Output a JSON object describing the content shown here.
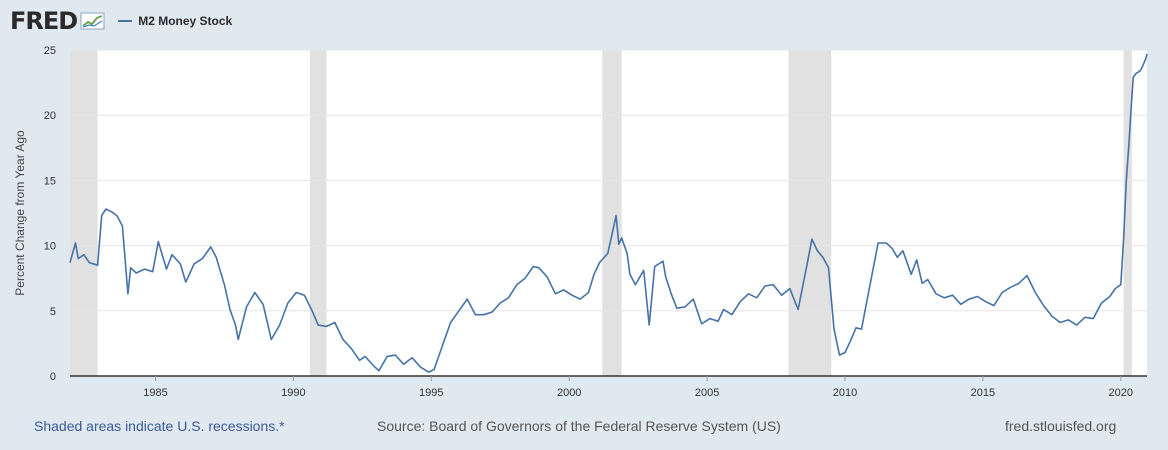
{
  "header": {
    "logo_text": "FRED",
    "logo_icon": "chart-line-icon"
  },
  "chart_data": {
    "type": "line",
    "title": "",
    "xlabel": "",
    "ylabel": "Percent Change from Year Ago",
    "xlim": [
      1981.9,
      2020.95
    ],
    "ylim": [
      0,
      25
    ],
    "x_ticks": [
      "1985",
      "1990",
      "1995",
      "2000",
      "2005",
      "2010",
      "2015",
      "2020"
    ],
    "y_ticks": [
      "0",
      "5",
      "10",
      "15",
      "20",
      "25"
    ],
    "grid": true,
    "legend_position": "top-left",
    "recessions": [
      [
        1981.9,
        1982.9
      ],
      [
        1990.6,
        1991.2
      ],
      [
        2001.2,
        2001.9
      ],
      [
        2007.95,
        2009.5
      ],
      [
        2020.1,
        2020.4
      ]
    ],
    "series": [
      {
        "name": "M2 Money Stock",
        "color": "#4572a7",
        "x": [
          1981.9,
          1982.1,
          1982.2,
          1982.4,
          1982.6,
          1982.9,
          1983.05,
          1983.2,
          1983.4,
          1983.6,
          1983.8,
          1984.0,
          1984.1,
          1984.3,
          1984.6,
          1984.9,
          1985.1,
          1985.4,
          1985.6,
          1985.9,
          1986.1,
          1986.4,
          1986.7,
          1987.0,
          1987.2,
          1987.5,
          1987.7,
          1987.9,
          1988.0,
          1988.3,
          1988.6,
          1988.9,
          1989.2,
          1989.5,
          1989.8,
          1990.1,
          1990.4,
          1990.7,
          1990.9,
          1991.2,
          1991.5,
          1991.8,
          1992.1,
          1992.4,
          1992.6,
          1992.9,
          1993.1,
          1993.4,
          1993.7,
          1994.0,
          1994.3,
          1994.6,
          1994.9,
          1995.1,
          1995.4,
          1995.7,
          1996.0,
          1996.3,
          1996.6,
          1996.9,
          1997.2,
          1997.5,
          1997.8,
          1998.1,
          1998.4,
          1998.7,
          1998.9,
          1999.2,
          1999.5,
          1999.8,
          2000.1,
          2000.4,
          2000.7,
          2000.9,
          2001.1,
          2001.4,
          2001.7,
          2001.8,
          2001.9,
          2002.1,
          2002.2,
          2002.4,
          2002.7,
          2002.9,
          2003.1,
          2003.4,
          2003.5,
          2003.7,
          2003.9,
          2004.2,
          2004.5,
          2004.8,
          2005.1,
          2005.4,
          2005.6,
          2005.9,
          2006.2,
          2006.5,
          2006.8,
          2007.1,
          2007.4,
          2007.7,
          2008.0,
          2008.3,
          2008.6,
          2008.8,
          2009.0,
          2009.2,
          2009.4,
          2009.6,
          2009.8,
          2010.0,
          2010.2,
          2010.4,
          2010.6,
          2010.9,
          2011.2,
          2011.5,
          2011.7,
          2011.9,
          2012.1,
          2012.4,
          2012.6,
          2012.8,
          2013.0,
          2013.3,
          2013.6,
          2013.9,
          2014.2,
          2014.5,
          2014.8,
          2015.1,
          2015.4,
          2015.7,
          2016.0,
          2016.3,
          2016.6,
          2016.9,
          2017.2,
          2017.5,
          2017.8,
          2018.1,
          2018.4,
          2018.7,
          2019.0,
          2019.3,
          2019.6,
          2019.8,
          2020.0,
          2020.1,
          2020.2,
          2020.3,
          2020.35,
          2020.45,
          2020.55,
          2020.7,
          2020.8,
          2020.9,
          2020.95
        ],
        "values": [
          8.7,
          10.2,
          9.0,
          9.3,
          8.7,
          8.5,
          12.3,
          12.8,
          12.6,
          12.3,
          11.5,
          6.3,
          8.3,
          7.9,
          8.2,
          8.0,
          10.3,
          8.2,
          9.3,
          8.6,
          7.2,
          8.6,
          9.0,
          9.9,
          9.1,
          7.0,
          5.1,
          3.9,
          2.8,
          5.3,
          6.4,
          5.5,
          2.8,
          3.9,
          5.6,
          6.4,
          6.2,
          4.9,
          3.9,
          3.8,
          4.1,
          2.8,
          2.1,
          1.2,
          1.5,
          0.8,
          0.4,
          1.5,
          1.6,
          0.9,
          1.4,
          0.7,
          0.3,
          0.5,
          2.3,
          4.1,
          5.0,
          5.9,
          4.7,
          4.7,
          4.9,
          5.6,
          6.0,
          7.0,
          7.5,
          8.4,
          8.3,
          7.6,
          6.3,
          6.6,
          6.2,
          5.9,
          6.4,
          7.8,
          8.7,
          9.4,
          12.3,
          10.1,
          10.6,
          9.4,
          7.8,
          7.0,
          8.1,
          3.9,
          8.4,
          8.8,
          7.6,
          6.3,
          5.2,
          5.3,
          5.9,
          4.0,
          4.4,
          4.2,
          5.1,
          4.7,
          5.7,
          6.3,
          6.0,
          6.9,
          7.0,
          6.2,
          6.7,
          5.1,
          8.3,
          10.5,
          9.6,
          9.1,
          8.3,
          3.6,
          1.6,
          1.8,
          2.7,
          3.7,
          3.6,
          6.9,
          10.2,
          10.2,
          9.8,
          9.1,
          9.6,
          7.8,
          8.9,
          7.1,
          7.4,
          6.3,
          6.0,
          6.2,
          5.5,
          5.9,
          6.1,
          5.7,
          5.4,
          6.4,
          6.8,
          7.1,
          7.7,
          6.4,
          5.4,
          4.6,
          4.1,
          4.3,
          3.9,
          4.5,
          4.4,
          5.6,
          6.1,
          6.7,
          7.0,
          10.5,
          15.0,
          18.0,
          19.8,
          22.9,
          23.2,
          23.4,
          23.8,
          24.3,
          24.7
        ]
      }
    ]
  },
  "footer": {
    "recession_note": "Shaded areas indicate U.S. recessions.*",
    "source": "Source: Board of Governors of the Federal Reserve System (US)",
    "url": "fred.stlouisfed.org"
  }
}
